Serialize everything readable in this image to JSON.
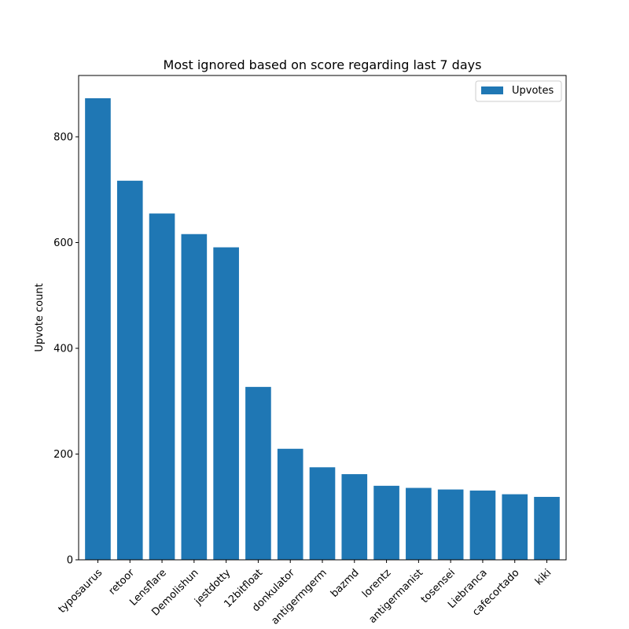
{
  "chart_data": {
    "type": "bar",
    "title": "Most ignored based on score regarding last 7 days",
    "xlabel": "",
    "ylabel": "Upvote count",
    "categories": [
      "typosaurus",
      "retoor",
      "Lensflare",
      "Demolishun",
      "jestdotty",
      "12bitfloat",
      "donkulator",
      "antigermgerm",
      "bazmd",
      "lorentz",
      "antigermanist",
      "tosensei",
      "Liebranca",
      "cafecortado",
      "kiki"
    ],
    "series": [
      {
        "name": "Upvotes",
        "values": [
          873,
          717,
          655,
          616,
          591,
          327,
          210,
          175,
          162,
          140,
          136,
          133,
          131,
          124,
          119
        ]
      }
    ],
    "ylim": [
      0,
      916
    ],
    "yticks": [
      0,
      200,
      400,
      600,
      800
    ],
    "grid": false,
    "legend": "top-right",
    "colors": {
      "bar": "#1f77b4",
      "axis": "#000000",
      "background": "#ffffff"
    }
  }
}
